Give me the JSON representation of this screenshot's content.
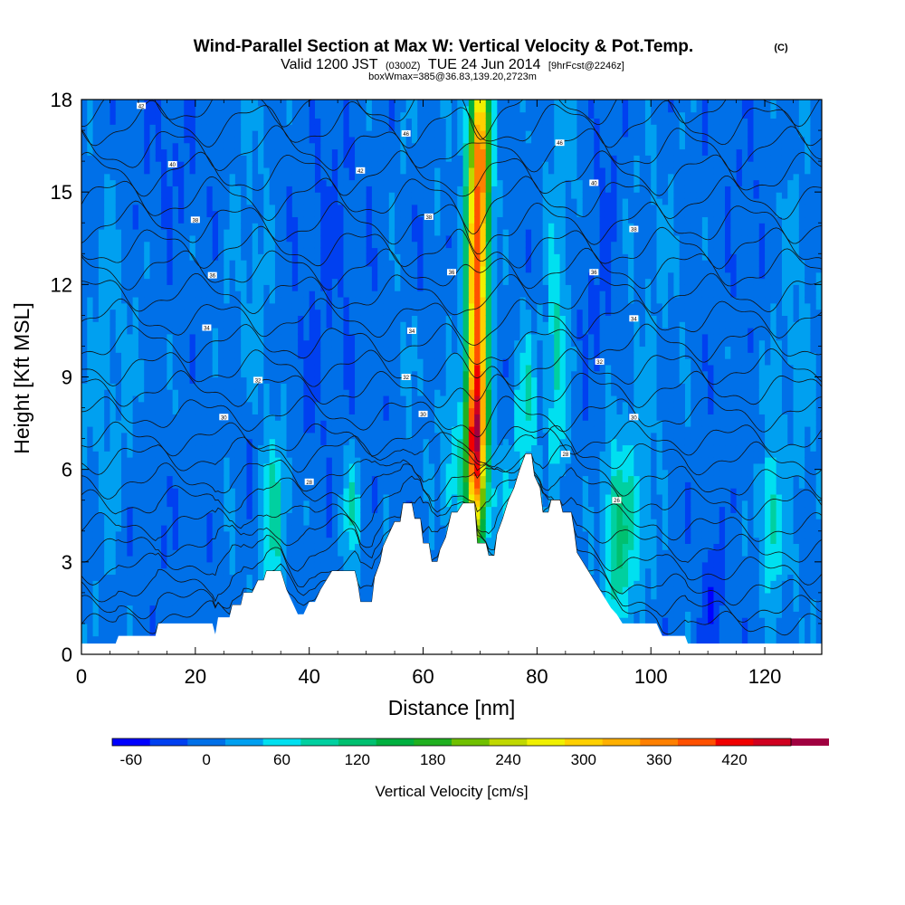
{
  "chart_data": {
    "type": "heatmap",
    "title": "Wind-Parallel Section at Max W: Vertical Velocity & Pot.Temp.",
    "title_mark": "(C)",
    "subtitle_parts": [
      "Valid 1200 JST",
      "(0300Z)",
      "TUE 24 Jun 2014",
      "[9hrFcst@2246z]"
    ],
    "subtitle2": "boxWmax=385@36.83,139.20,2723m",
    "xlabel": "Distance [nm]",
    "ylabel": "Height [Kft MSL]",
    "xlim": [
      0,
      130
    ],
    "ylim": [
      0,
      18
    ],
    "xticks": [
      0,
      20,
      40,
      60,
      80,
      100,
      120
    ],
    "yticks": [
      0,
      3,
      6,
      9,
      12,
      15,
      18
    ],
    "colorbar": {
      "label": "Vertical Velocity [cm/s]",
      "min": -75,
      "max": 465,
      "step": 30,
      "tick_values": [
        -60,
        0,
        60,
        120,
        180,
        240,
        300,
        360,
        420
      ],
      "tick_labels": [
        "-60",
        "0",
        "60",
        "120",
        "180",
        "240",
        "300",
        "360",
        "420"
      ],
      "colors": [
        "#0000ff",
        "#0040f0",
        "#0070e8",
        "#00a0f0",
        "#00e0f0",
        "#00d0a0",
        "#00c070",
        "#00b040",
        "#20b020",
        "#70c000",
        "#c0d800",
        "#f0f000",
        "#ffd000",
        "#ffb000",
        "#ff8000",
        "#ff5000",
        "#f00000",
        "#d00020",
        "#a00040"
      ]
    },
    "background_velocity": 0,
    "velocity_features": [
      {
        "x": 69.5,
        "y": 11.0,
        "sx": 1.3,
        "sy": 5.5,
        "value": 385
      },
      {
        "x": 70.5,
        "y": 16.5,
        "sx": 1.2,
        "sy": 2.0,
        "value": 160
      },
      {
        "x": 69.0,
        "y": 6.8,
        "sx": 1.3,
        "sy": 1.5,
        "value": 200
      },
      {
        "x": 34.0,
        "y": 4.5,
        "sx": 1.6,
        "sy": 1.8,
        "value": 85
      },
      {
        "x": 47.5,
        "y": 4.8,
        "sx": 1.2,
        "sy": 1.4,
        "value": 70
      },
      {
        "x": 78.0,
        "y": 8.0,
        "sx": 1.5,
        "sy": 1.8,
        "value": 75
      },
      {
        "x": 83.5,
        "y": 9.5,
        "sx": 1.2,
        "sy": 3.0,
        "value": 85
      },
      {
        "x": 94.0,
        "y": 3.8,
        "sx": 1.8,
        "sy": 2.2,
        "value": 110
      },
      {
        "x": 121.0,
        "y": 4.2,
        "sx": 1.3,
        "sy": 1.8,
        "value": 80
      },
      {
        "x": 65.0,
        "y": 5.5,
        "sx": 1.5,
        "sy": 1.5,
        "value": 60
      },
      {
        "x": 98.0,
        "y": 4.5,
        "sx": 2.0,
        "sy": 2.0,
        "value": 45
      },
      {
        "x": 74.0,
        "y": 5.0,
        "sx": 2.0,
        "sy": 1.2,
        "value": 40
      },
      {
        "x": 5.0,
        "y": 9.0,
        "sx": 4.0,
        "sy": 5.0,
        "value": 25
      },
      {
        "x": 30.0,
        "y": 10.0,
        "sx": 3.0,
        "sy": 6.0,
        "value": 25
      },
      {
        "x": 100.0,
        "y": 12.5,
        "sx": 4.0,
        "sy": 4.0,
        "value": 18
      },
      {
        "x": 86.0,
        "y": 16.0,
        "sx": 3.0,
        "sy": 2.0,
        "value": 30
      },
      {
        "x": 60.0,
        "y": 13.0,
        "sx": 3.0,
        "sy": 5.0,
        "value": 20
      },
      {
        "x": 125.0,
        "y": 10.0,
        "sx": 3.0,
        "sy": 6.0,
        "value": 25
      },
      {
        "x": 60.0,
        "y": 13.5,
        "sx": 1.2,
        "sy": 2.0,
        "value": -45
      },
      {
        "x": 29.5,
        "y": 6.5,
        "sx": 1.2,
        "sy": 1.6,
        "value": -40
      },
      {
        "x": 15.0,
        "y": 16.0,
        "sx": 5.0,
        "sy": 2.5,
        "value": -15
      },
      {
        "x": 44.0,
        "y": 15.0,
        "sx": 4.0,
        "sy": 3.0,
        "value": -15
      },
      {
        "x": 91.0,
        "y": 14.0,
        "sx": 3.0,
        "sy": 3.5,
        "value": -25
      },
      {
        "x": 111.0,
        "y": 2.0,
        "sx": 1.5,
        "sy": 1.5,
        "value": -40
      },
      {
        "x": 11.0,
        "y": 4.0,
        "sx": 4.0,
        "sy": 1.5,
        "value": -12
      },
      {
        "x": 43.0,
        "y": 9.0,
        "sx": 5.0,
        "sy": 3.0,
        "value": -12
      },
      {
        "x": 118.0,
        "y": 15.0,
        "sx": 6.0,
        "sy": 3.0,
        "value": -10
      }
    ],
    "terrain_kft": [
      [
        0,
        0.35
      ],
      [
        6,
        0.35
      ],
      [
        6.5,
        0.6
      ],
      [
        13,
        0.6
      ],
      [
        13.5,
        1.0
      ],
      [
        23,
        1.0
      ],
      [
        23.5,
        0.65
      ],
      [
        24,
        1.2
      ],
      [
        26,
        1.2
      ],
      [
        26.5,
        1.6
      ],
      [
        28,
        1.6
      ],
      [
        28.5,
        2.0
      ],
      [
        30,
        2.0
      ],
      [
        31,
        2.4
      ],
      [
        32,
        2.4
      ],
      [
        32.5,
        2.7
      ],
      [
        35,
        2.7
      ],
      [
        36,
        2.1
      ],
      [
        37,
        1.7
      ],
      [
        38,
        1.3
      ],
      [
        39,
        1.3
      ],
      [
        40,
        1.7
      ],
      [
        41,
        1.7
      ],
      [
        42,
        2.1
      ],
      [
        43,
        2.4
      ],
      [
        44,
        2.7
      ],
      [
        48,
        2.7
      ],
      [
        48.5,
        2.3
      ],
      [
        49,
        1.7
      ],
      [
        51,
        1.7
      ],
      [
        51.5,
        2.5
      ],
      [
        52.5,
        3.0
      ],
      [
        53,
        3.5
      ],
      [
        54,
        3.9
      ],
      [
        55,
        4.3
      ],
      [
        56,
        4.3
      ],
      [
        56.5,
        4.9
      ],
      [
        58,
        4.9
      ],
      [
        58.5,
        4.4
      ],
      [
        59.5,
        4.4
      ],
      [
        60,
        3.6
      ],
      [
        61,
        3.6
      ],
      [
        61.5,
        3.0
      ],
      [
        62.5,
        3.0
      ],
      [
        63,
        3.4
      ],
      [
        64,
        3.8
      ],
      [
        65,
        4.6
      ],
      [
        66,
        4.6
      ],
      [
        67,
        4.9
      ],
      [
        69,
        4.9
      ],
      [
        69.5,
        3.6
      ],
      [
        71,
        3.6
      ],
      [
        71.5,
        3.2
      ],
      [
        72.5,
        3.2
      ],
      [
        73,
        3.9
      ],
      [
        74,
        4.4
      ],
      [
        75,
        5.0
      ],
      [
        76,
        5.4
      ],
      [
        77,
        6.0
      ],
      [
        78,
        6.5
      ],
      [
        79,
        6.5
      ],
      [
        79.5,
        5.8
      ],
      [
        80.5,
        5.4
      ],
      [
        81,
        4.6
      ],
      [
        82,
        4.6
      ],
      [
        82.5,
        5.0
      ],
      [
        84,
        5.0
      ],
      [
        84.5,
        4.6
      ],
      [
        86,
        4.6
      ],
      [
        86.5,
        4.0
      ],
      [
        87,
        3.3
      ],
      [
        88,
        3.0
      ],
      [
        89,
        2.7
      ],
      [
        90,
        2.4
      ],
      [
        91,
        2.1
      ],
      [
        92,
        1.8
      ],
      [
        93,
        1.5
      ],
      [
        94,
        1.3
      ],
      [
        95,
        1.0
      ],
      [
        101,
        1.0
      ],
      [
        102,
        0.6
      ],
      [
        106,
        0.6
      ],
      [
        106.5,
        0.35
      ],
      [
        130,
        0.35
      ]
    ],
    "isentropes": {
      "levels_kft": [
        0.8,
        1.3,
        1.9,
        2.6,
        3.3,
        4.0,
        4.8,
        5.5,
        6.3,
        7.0,
        7.8,
        8.6,
        9.3,
        10.1,
        10.9,
        11.7,
        12.5,
        13.2,
        14.0,
        14.8,
        15.6,
        16.4,
        17.2,
        17.9
      ],
      "labels": [
        {
          "text": "42",
          "x": 10.5,
          "y": 17.8
        },
        {
          "text": "46",
          "x": 57,
          "y": 16.9
        },
        {
          "text": "46",
          "x": 84,
          "y": 16.6
        },
        {
          "text": "40",
          "x": 16,
          "y": 15.9
        },
        {
          "text": "42",
          "x": 49,
          "y": 15.7
        },
        {
          "text": "40",
          "x": 90,
          "y": 15.3
        },
        {
          "text": "38",
          "x": 20,
          "y": 14.1
        },
        {
          "text": "38",
          "x": 61,
          "y": 14.2
        },
        {
          "text": "38",
          "x": 97,
          "y": 13.8
        },
        {
          "text": "36",
          "x": 23,
          "y": 12.3
        },
        {
          "text": "36",
          "x": 65,
          "y": 12.4
        },
        {
          "text": "36",
          "x": 90,
          "y": 12.4
        },
        {
          "text": "34",
          "x": 22,
          "y": 10.6
        },
        {
          "text": "34",
          "x": 58,
          "y": 10.5
        },
        {
          "text": "34",
          "x": 97,
          "y": 10.9
        },
        {
          "text": "32",
          "x": 31,
          "y": 8.9
        },
        {
          "text": "32",
          "x": 57,
          "y": 9.0
        },
        {
          "text": "32",
          "x": 91,
          "y": 9.5
        },
        {
          "text": "30",
          "x": 25,
          "y": 7.7
        },
        {
          "text": "30",
          "x": 60,
          "y": 7.8
        },
        {
          "text": "30",
          "x": 97,
          "y": 7.7
        },
        {
          "text": "28",
          "x": 40,
          "y": 5.6
        },
        {
          "text": "28",
          "x": 85,
          "y": 6.5
        },
        {
          "text": "26",
          "x": 94,
          "y": 5.0
        }
      ]
    }
  }
}
